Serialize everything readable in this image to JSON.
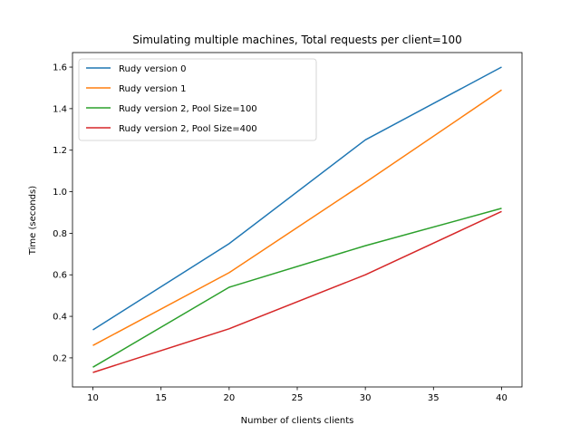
{
  "chart_data": {
    "type": "line",
    "title": "Simulating multiple machines, Total requests per client=100",
    "xlabel": "Number of clients clients",
    "ylabel": "Time (seconds)",
    "x": [
      10,
      20,
      30,
      40
    ],
    "xlim": [
      8.5,
      41.5
    ],
    "ylim": [
      0.06,
      1.67
    ],
    "xticks": [
      10,
      15,
      20,
      25,
      30,
      35,
      40
    ],
    "yticks": [
      0.2,
      0.4,
      0.6,
      0.8,
      1.0,
      1.2,
      1.4,
      1.6
    ],
    "ytick_labels": [
      "0.2",
      "0.4",
      "0.6",
      "0.8",
      "1.0",
      "1.2",
      "1.4",
      "1.6"
    ],
    "grid": false,
    "legend_position": "top-left",
    "series": [
      {
        "name": "Rudy version 0",
        "color": "#1f77b4",
        "values": [
          0.335,
          0.75,
          1.25,
          1.6
        ]
      },
      {
        "name": "Rudy version 1",
        "color": "#ff7f0e",
        "values": [
          0.26,
          0.61,
          1.045,
          1.49
        ]
      },
      {
        "name": "Rudy version 2, Pool Size=100",
        "color": "#2ca02c",
        "values": [
          0.155,
          0.54,
          0.74,
          0.92
        ]
      },
      {
        "name": "Rudy version 2, Pool Size=400",
        "color": "#d62728",
        "values": [
          0.13,
          0.34,
          0.6,
          0.905
        ]
      }
    ]
  }
}
